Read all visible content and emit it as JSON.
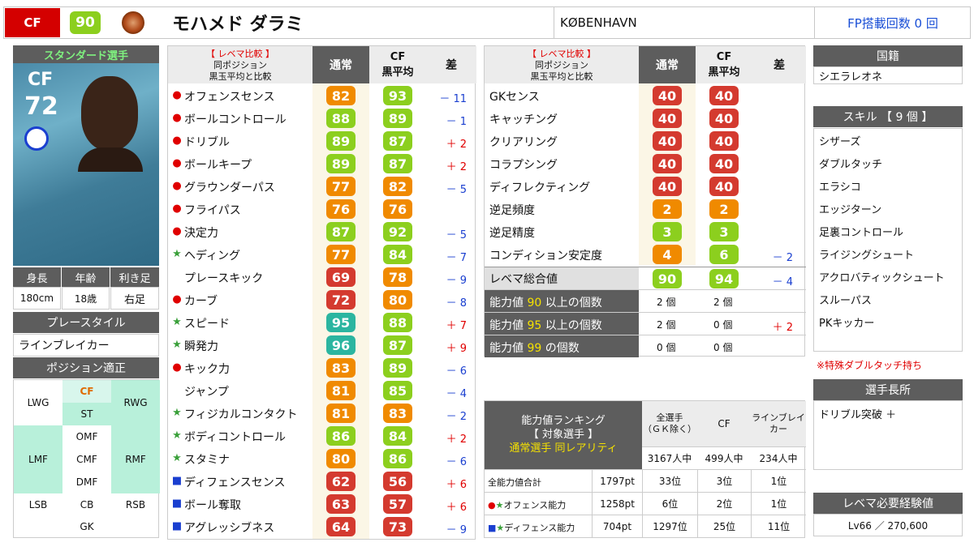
{
  "header": {
    "pos": "CF",
    "rating": "90",
    "name": "モハメド ダラミ",
    "club": "KØBENHAVN",
    "fp": "FP搭載回数 0 回"
  },
  "card": {
    "tag": "スタンダード選手",
    "pos": "CF",
    "ovr": "72"
  },
  "profile": {
    "h_label": "身長",
    "a_label": "年齢",
    "f_label": "利き足",
    "h": "180cm",
    "a": "18歳",
    "f": "右足"
  },
  "playstyle": {
    "label": "プレースタイル",
    "value": "ラインブレイカー"
  },
  "positions": {
    "label": "ポジション適正",
    "lwg": "LWG",
    "cf": "CF",
    "rwg": "RWG",
    "st": "ST",
    "lmf": "LMF",
    "omf": "OMF",
    "cmf": "CMF",
    "dmf": "DMF",
    "rmf": "RMF",
    "lsb": "LSB",
    "cb": "CB",
    "rsb": "RSB",
    "gk": "GK"
  },
  "left_table": {
    "h1": "【 レベマ比較 】",
    "h2": "同ポジション",
    "h3": "黒玉平均と比較",
    "col_normal": "通常",
    "col_cf": "CF",
    "col_cf2": "黒平均",
    "col_diff": "差",
    "rows": [
      {
        "mark": "●",
        "mc": "#e00000",
        "label": "オフェンスセンス",
        "v": "82",
        "vc": "#f08a00",
        "a": "93",
        "ac": "#8ccf1e",
        "d": "－ 11",
        "dc": "#1a3fd0"
      },
      {
        "mark": "●",
        "mc": "#e00000",
        "label": "ボールコントロール",
        "v": "88",
        "vc": "#8ccf1e",
        "a": "89",
        "ac": "#8ccf1e",
        "d": "－ 1",
        "dc": "#1a3fd0"
      },
      {
        "mark": "●",
        "mc": "#e00000",
        "label": "ドリブル",
        "v": "89",
        "vc": "#8ccf1e",
        "a": "87",
        "ac": "#8ccf1e",
        "d": "＋ 2",
        "dc": "#e00000"
      },
      {
        "mark": "●",
        "mc": "#e00000",
        "label": "ボールキープ",
        "v": "89",
        "vc": "#8ccf1e",
        "a": "87",
        "ac": "#8ccf1e",
        "d": "＋ 2",
        "dc": "#e00000"
      },
      {
        "mark": "●",
        "mc": "#e00000",
        "label": "グラウンダーパス",
        "v": "77",
        "vc": "#f08a00",
        "a": "82",
        "ac": "#f08a00",
        "d": "－ 5",
        "dc": "#1a3fd0"
      },
      {
        "mark": "●",
        "mc": "#e00000",
        "label": "フライパス",
        "v": "76",
        "vc": "#f08a00",
        "a": "76",
        "ac": "#f08a00",
        "d": "",
        "dc": "#111"
      },
      {
        "mark": "●",
        "mc": "#e00000",
        "label": "決定力",
        "v": "87",
        "vc": "#8ccf1e",
        "a": "92",
        "ac": "#8ccf1e",
        "d": "－ 5",
        "dc": "#1a3fd0"
      },
      {
        "mark": "★",
        "mc": "#3aa03a",
        "label": "ヘディング",
        "v": "77",
        "vc": "#f08a00",
        "a": "84",
        "ac": "#8ccf1e",
        "d": "－ 7",
        "dc": "#1a3fd0"
      },
      {
        "mark": "",
        "mc": "#111",
        "label": "プレースキック",
        "v": "69",
        "vc": "#d43a2f",
        "a": "78",
        "ac": "#f08a00",
        "d": "－ 9",
        "dc": "#1a3fd0"
      },
      {
        "mark": "●",
        "mc": "#e00000",
        "label": "カーブ",
        "v": "72",
        "vc": "#d43a2f",
        "a": "80",
        "ac": "#f08a00",
        "d": "－ 8",
        "dc": "#1a3fd0"
      },
      {
        "mark": "★",
        "mc": "#3aa03a",
        "label": "スピード",
        "v": "95",
        "vc": "#2bb5a0",
        "a": "88",
        "ac": "#8ccf1e",
        "d": "＋ 7",
        "dc": "#e00000"
      },
      {
        "mark": "★",
        "mc": "#3aa03a",
        "label": "瞬発力",
        "v": "96",
        "vc": "#2bb5a0",
        "a": "87",
        "ac": "#8ccf1e",
        "d": "＋ 9",
        "dc": "#e00000"
      },
      {
        "mark": "●",
        "mc": "#e00000",
        "label": "キック力",
        "v": "83",
        "vc": "#f08a00",
        "a": "89",
        "ac": "#8ccf1e",
        "d": "－ 6",
        "dc": "#1a3fd0"
      },
      {
        "mark": "",
        "mc": "#111",
        "label": "ジャンプ",
        "v": "81",
        "vc": "#f08a00",
        "a": "85",
        "ac": "#8ccf1e",
        "d": "－ 4",
        "dc": "#1a3fd0"
      },
      {
        "mark": "★",
        "mc": "#3aa03a",
        "label": "フィジカルコンタクト",
        "v": "81",
        "vc": "#f08a00",
        "a": "83",
        "ac": "#f08a00",
        "d": "－ 2",
        "dc": "#1a3fd0"
      },
      {
        "mark": "★",
        "mc": "#3aa03a",
        "label": "ボディコントロール",
        "v": "86",
        "vc": "#8ccf1e",
        "a": "84",
        "ac": "#8ccf1e",
        "d": "＋ 2",
        "dc": "#e00000"
      },
      {
        "mark": "★",
        "mc": "#3aa03a",
        "label": "スタミナ",
        "v": "80",
        "vc": "#f08a00",
        "a": "86",
        "ac": "#8ccf1e",
        "d": "－ 6",
        "dc": "#1a3fd0"
      },
      {
        "mark": "■",
        "mc": "#1a3fd0",
        "label": "ディフェンスセンス",
        "v": "62",
        "vc": "#d43a2f",
        "a": "56",
        "ac": "#d43a2f",
        "d": "＋ 6",
        "dc": "#e00000"
      },
      {
        "mark": "■",
        "mc": "#1a3fd0",
        "label": "ボール奪取",
        "v": "63",
        "vc": "#d43a2f",
        "a": "57",
        "ac": "#d43a2f",
        "d": "＋ 6",
        "dc": "#e00000"
      },
      {
        "mark": "■",
        "mc": "#1a3fd0",
        "label": "アグレッシブネス",
        "v": "64",
        "vc": "#d43a2f",
        "a": "73",
        "ac": "#d43a2f",
        "d": "－ 9",
        "dc": "#1a3fd0"
      }
    ]
  },
  "right_table": {
    "h1": "【 レベマ比較 】",
    "h2": "同ポジション",
    "h3": "黒玉平均と比較",
    "col_normal": "通常",
    "col_cf": "CF",
    "col_cf2": "黒平均",
    "col_diff": "差",
    "rows": [
      {
        "label": "GKセンス",
        "v": "40",
        "vc": "#d43a2f",
        "a": "40",
        "ac": "#d43a2f",
        "d": "",
        "dc": "#111"
      },
      {
        "label": "キャッチング",
        "v": "40",
        "vc": "#d43a2f",
        "a": "40",
        "ac": "#d43a2f",
        "d": "",
        "dc": "#111"
      },
      {
        "label": "クリアリング",
        "v": "40",
        "vc": "#d43a2f",
        "a": "40",
        "ac": "#d43a2f",
        "d": "",
        "dc": "#111"
      },
      {
        "label": "コラプシング",
        "v": "40",
        "vc": "#d43a2f",
        "a": "40",
        "ac": "#d43a2f",
        "d": "",
        "dc": "#111"
      },
      {
        "label": "ディフレクティング",
        "v": "40",
        "vc": "#d43a2f",
        "a": "40",
        "ac": "#d43a2f",
        "d": "",
        "dc": "#111"
      },
      {
        "label": "逆足頻度",
        "v": "2",
        "vc": "#f08a00",
        "a": "2",
        "ac": "#f08a00",
        "d": "",
        "dc": "#111"
      },
      {
        "label": "逆足精度",
        "v": "3",
        "vc": "#8ccf1e",
        "a": "3",
        "ac": "#8ccf1e",
        "d": "",
        "dc": "#111"
      },
      {
        "label": "コンディション安定度",
        "v": "4",
        "vc": "#f08a00",
        "a": "6",
        "ac": "#8ccf1e",
        "d": "－ 2",
        "dc": "#1a3fd0"
      }
    ],
    "total_label": "レベマ総合値",
    "total_v": "90",
    "total_a": "94",
    "total_d": "－ 4",
    "counts": [
      {
        "pre": "能力値",
        "num": "90",
        "post": "以上の個数",
        "v": "2 個",
        "a": "2 個",
        "d": "",
        "dc": "#111"
      },
      {
        "pre": "能力値",
        "num": "95",
        "post": "以上の個数",
        "v": "2 個",
        "a": "0 個",
        "d": "＋ 2",
        "dc": "#e00000"
      },
      {
        "pre": "能力値",
        "num": "99",
        "post": "の個数",
        "v": "0 個",
        "a": "0 個",
        "d": "",
        "dc": "#111"
      }
    ]
  },
  "ranking": {
    "t1": "能力値ランキング",
    "t2": "【 対象選手 】",
    "t3": "通常選手 同レアリティ",
    "c1a": "全選手",
    "c1b": "（ＧＫ除く）",
    "c2": "CF",
    "c3a": "ラインブレイ",
    "c3b": "カー",
    "n1": "3167人中",
    "n2": "499人中",
    "n3": "234人中",
    "rows": [
      {
        "label": "全能力値合計",
        "pt": "1797pt",
        "r1": "33位",
        "r2": "3位",
        "r3": "1位"
      },
      {
        "label": "オフェンス能力",
        "pt": "1258pt",
        "r1": "6位",
        "r2": "2位",
        "r3": "1位"
      },
      {
        "label": "ディフェンス能力",
        "pt": "704pt",
        "r1": "1297位",
        "r2": "25位",
        "r3": "11位"
      }
    ]
  },
  "side": {
    "nat_label": "国籍",
    "nat": "シエラレオネ",
    "skill_label": "スキル 【 9 個 】",
    "skills": [
      "シザーズ",
      "ダブルタッチ",
      "エラシコ",
      "エッジターン",
      "足裏コントロール",
      "ライジングシュート",
      "アクロバティックシュート",
      "スルーパス",
      "PKキッカー"
    ],
    "note": "※特殊ダブルタッチ持ち",
    "strength_label": "選手長所",
    "strength": "ドリブル突破 ＋",
    "exp_label": "レベマ必要経験値",
    "exp": "Lv66 ／ 270,600"
  }
}
